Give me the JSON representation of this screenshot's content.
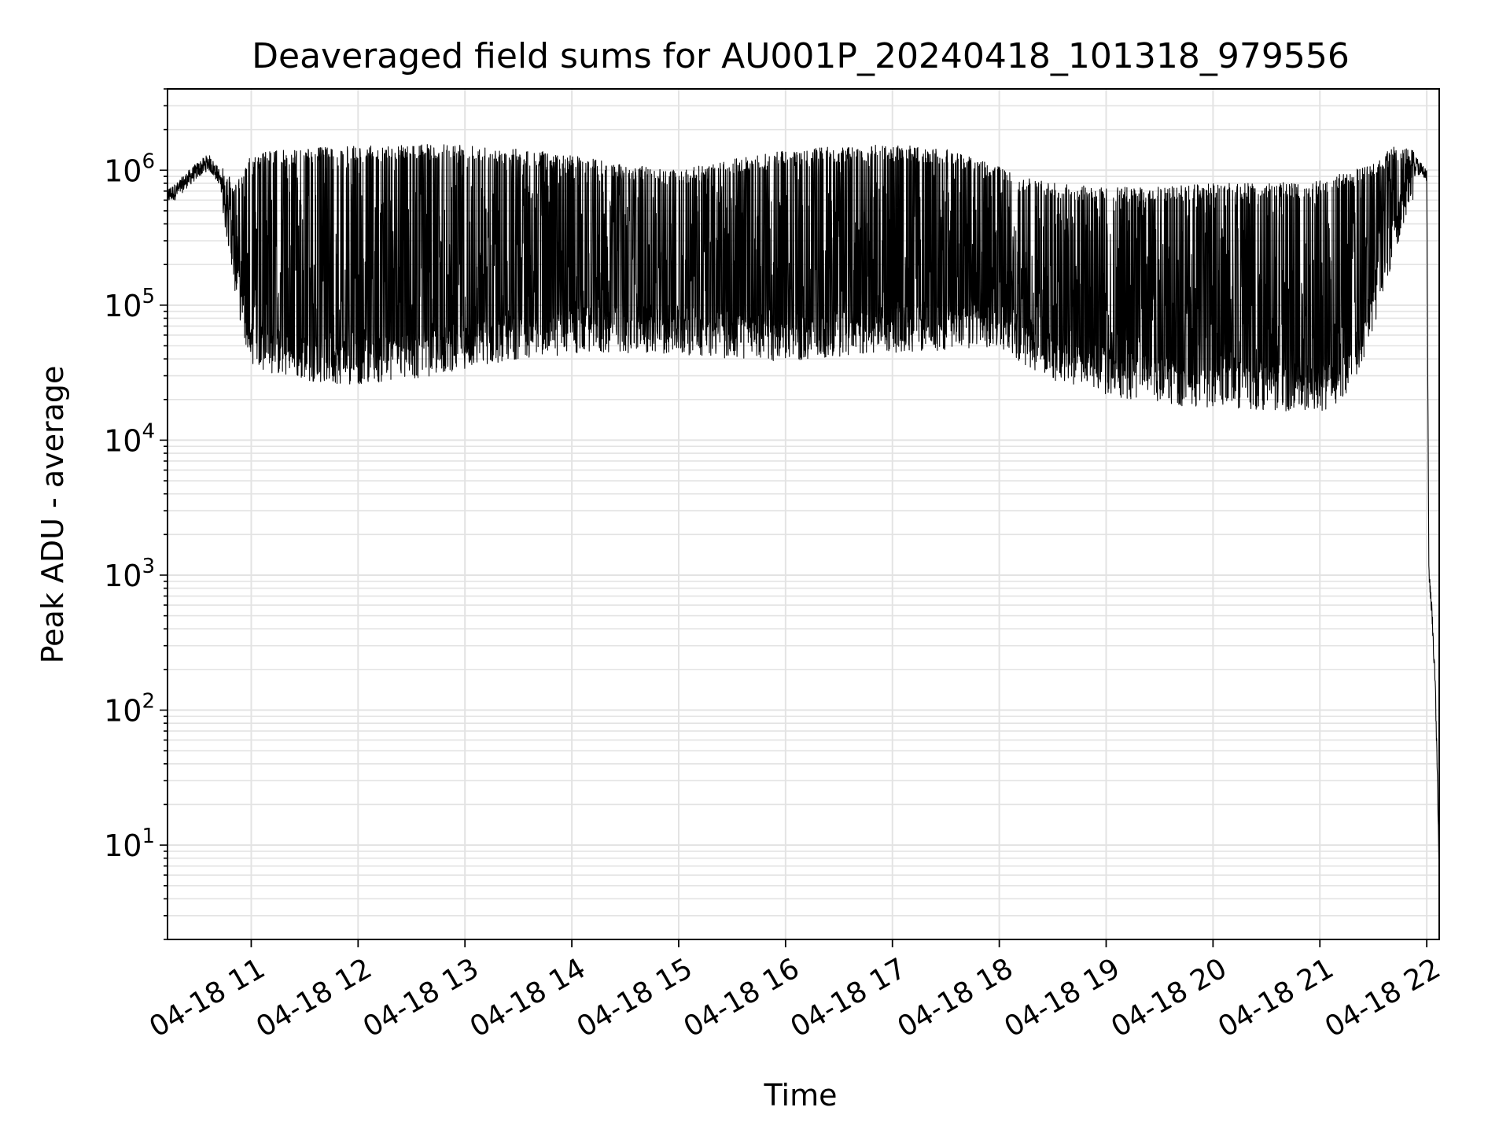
{
  "chart_data": {
    "type": "line",
    "title": "Deaveraged field sums for AU001P_20240418_101318_979556",
    "xlabel": "Time",
    "ylabel": "Peak ADU - average",
    "yscale": "log",
    "xlim": [
      "2024-04-18T10:13",
      "2024-04-18T22:07"
    ],
    "ylim": [
      2,
      4000000
    ],
    "x_tick_labels": [
      "04-18 11",
      "04-18 12",
      "04-18 13",
      "04-18 14",
      "04-18 15",
      "04-18 16",
      "04-18 17",
      "04-18 18",
      "04-18 19",
      "04-18 20",
      "04-18 21",
      "04-18 22"
    ],
    "x_tick_hours": [
      11,
      12,
      13,
      14,
      15,
      16,
      17,
      18,
      19,
      20,
      21,
      22
    ],
    "y_ticks": [
      {
        "value": 10,
        "base": "10",
        "exp": "1"
      },
      {
        "value": 100,
        "base": "10",
        "exp": "2"
      },
      {
        "value": 1000,
        "base": "10",
        "exp": "3"
      },
      {
        "value": 10000,
        "base": "10",
        "exp": "4"
      },
      {
        "value": 100000,
        "base": "10",
        "exp": "5"
      },
      {
        "value": 1000000,
        "base": "10",
        "exp": "6"
      }
    ],
    "grid": true,
    "line_color": "#000000",
    "grid_color": "#e3e3e3",
    "series": [
      {
        "hours": [
          10.22,
          10.3,
          10.4,
          10.5,
          10.6,
          10.7,
          10.8,
          10.85,
          10.9,
          10.95,
          11.0,
          11.2,
          11.5,
          11.8,
          12.0,
          12.5,
          13.0,
          13.5,
          14.0,
          14.5,
          15.0,
          15.5,
          16.0,
          16.5,
          17.0,
          17.5,
          18.0,
          18.2,
          18.5,
          19.0,
          19.5,
          20.0,
          20.5,
          21.0,
          21.3,
          21.5,
          21.7,
          21.9,
          22.0,
          22.02,
          22.05,
          22.08,
          22.1,
          22.12
        ],
        "baseline": [
          650000,
          700000,
          850000,
          1000000,
          1150000,
          900000,
          400000,
          200000,
          120000,
          80000,
          60000,
          50000,
          45000,
          42000,
          42000,
          45000,
          55000,
          65000,
          70000,
          72000,
          70000,
          65000,
          62000,
          65000,
          72000,
          75000,
          80000,
          60000,
          45000,
          35000,
          30000,
          28000,
          27000,
          26000,
          35000,
          100000,
          400000,
          1100000,
          900000,
          1000,
          500,
          150,
          30,
          4
        ],
        "peaks": [
          750000,
          850000,
          1000000,
          1200000,
          1300000,
          1100000,
          900000,
          800000,
          900000,
          1200000,
          1300000,
          1400000,
          1450000,
          1500000,
          1500000,
          1550000,
          1550000,
          1450000,
          1300000,
          1100000,
          1000000,
          1200000,
          1400000,
          1500000,
          1550000,
          1450000,
          1100000,
          900000,
          800000,
          750000,
          750000,
          800000,
          800000,
          850000,
          1000000,
          1200000,
          1500000,
          1400000,
          1000000,
          1000,
          500,
          150,
          30,
          4
        ]
      }
    ]
  }
}
